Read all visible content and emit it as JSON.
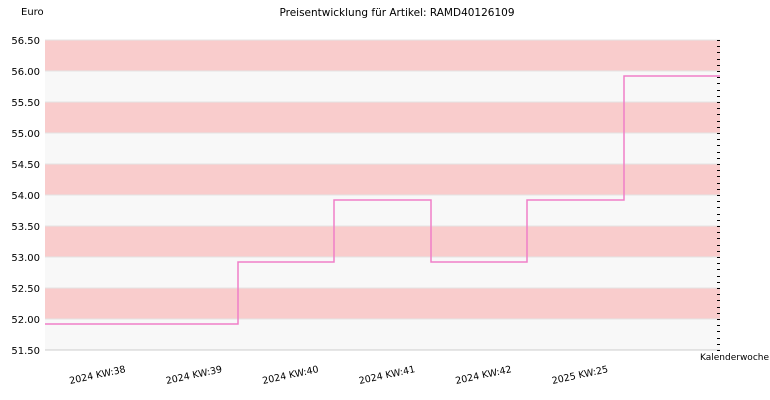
{
  "chart_data": {
    "type": "line",
    "title": "Preisentwicklung für Artikel: RAMD40126109",
    "ylabel": "Euro",
    "xlabel": "Kalenderwoche",
    "ylim": [
      51.5,
      56.5
    ],
    "yticks": [
      "51.50",
      "52.00",
      "52.50",
      "53.00",
      "53.50",
      "54.00",
      "54.50",
      "55.00",
      "55.50",
      "56.00",
      "56.50"
    ],
    "categories": [
      "2024 KW:38",
      "2024 KW:39",
      "2024 KW:40",
      "2024 KW:41",
      "2024 KW:42",
      "2025 KW:25"
    ],
    "series": [
      {
        "values": [
          51.92,
          52.92,
          53.92,
          52.92,
          53.92,
          55.92
        ],
        "color": "#f07fc8",
        "step": true
      }
    ],
    "grid": true,
    "band_colors": [
      "#f8f8f8",
      "#f9cccc"
    ]
  }
}
